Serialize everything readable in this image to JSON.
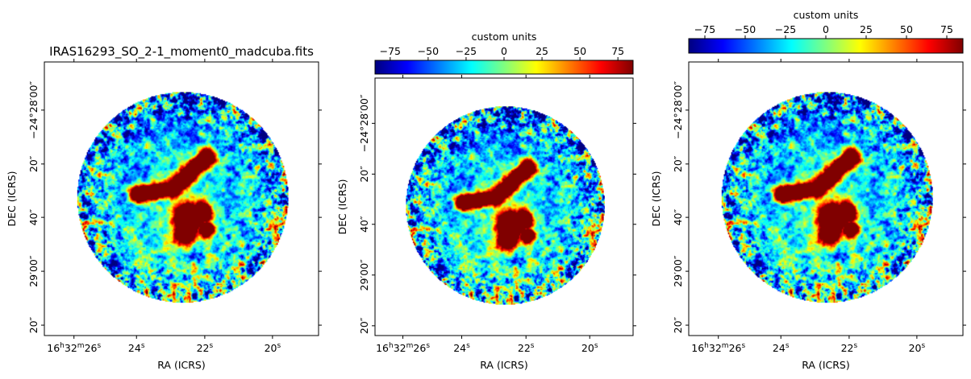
{
  "chart_data": [
    {
      "type": "heatmap",
      "title": "IRAS16293_SO_2-1_moment0_madcuba.fits",
      "xlabel": "RA (ICRS)",
      "ylabel": "DEC (ICRS)",
      "x_tick_labels": [
        {
          "h": "16",
          "m": "32",
          "s": "26"
        },
        {
          "s": "24"
        },
        {
          "s": "22"
        },
        {
          "s": "20"
        }
      ],
      "y_tick_labels": [
        "−24°28′00″",
        "20″",
        "40″",
        "29′00″",
        "20″"
      ],
      "colorbar": null,
      "grid": false
    },
    {
      "type": "heatmap",
      "title": "",
      "xlabel": "RA (ICRS)",
      "ylabel": "DEC (ICRS)",
      "x_tick_labels": [
        {
          "h": "16",
          "m": "32",
          "s": "26"
        },
        {
          "s": "24"
        },
        {
          "s": "22"
        },
        {
          "s": "20"
        }
      ],
      "y_tick_labels": [
        "−24°28′00″",
        "20″",
        "40″",
        "29′00″",
        "20″"
      ],
      "colorbar": {
        "label": "custom units",
        "colormap": "jet",
        "range": [
          -85,
          85
        ],
        "ticks": [
          -75,
          -50,
          -25,
          0,
          25,
          50,
          75
        ],
        "tick_labels": [
          "−75",
          "−50",
          "−25",
          "0",
          "25",
          "50",
          "75"
        ],
        "position": "top"
      },
      "grid": false
    },
    {
      "type": "heatmap",
      "title": "",
      "xlabel": "RA (ICRS)",
      "ylabel": "DEC (ICRS)",
      "x_tick_labels": [
        {
          "h": "16",
          "m": "32",
          "s": "26"
        },
        {
          "s": "24"
        },
        {
          "s": "22"
        },
        {
          "s": "20"
        }
      ],
      "y_tick_labels": [
        "−24°28′00″",
        "20″",
        "40″",
        "29′00″",
        "20″"
      ],
      "colorbar": {
        "label": "custom units",
        "colormap": "jet",
        "range": [
          -85,
          85
        ],
        "ticks": [
          -75,
          -50,
          -25,
          0,
          25,
          50,
          75
        ],
        "tick_labels": [
          "−75",
          "−50",
          "−25",
          "0",
          "25",
          "50",
          "75"
        ],
        "position": "top"
      },
      "grid": false
    }
  ],
  "colors": {
    "jet": [
      "#00007f",
      "#0000ff",
      "#007fff",
      "#00ffff",
      "#7fff7f",
      "#ffff00",
      "#ff7f00",
      "#ff0000",
      "#7f0000"
    ]
  }
}
